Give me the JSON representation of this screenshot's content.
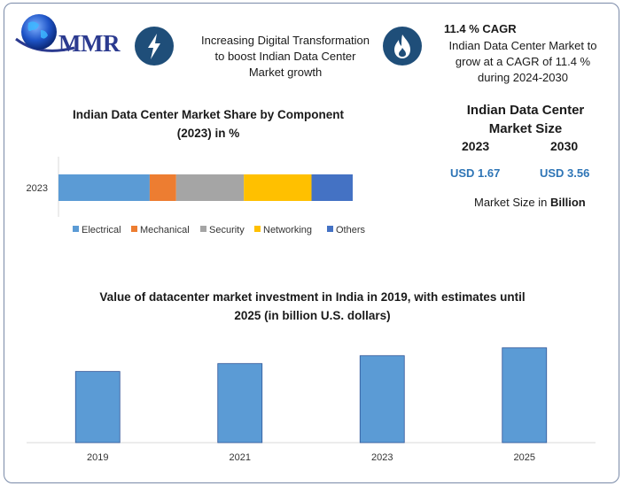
{
  "logo": {
    "text": "MMR",
    "icon": "globe-icon"
  },
  "header": {
    "transformation_icon": "lightning-bolt-icon",
    "transformation_text": [
      "Increasing Digital Transformation",
      "to boost Indian Data Center",
      "Market growth"
    ],
    "cagr_icon": "flame-icon",
    "cagr_title": "11.4 % CAGR",
    "cagr_text": [
      "Indian Data Center Market to",
      "grow at a CAGR of 11.4 %",
      "during 2024-2030"
    ]
  },
  "market_size": {
    "title": [
      "Indian Data Center",
      "Market Size"
    ],
    "year1": "2023",
    "year2": "2030",
    "value1": "USD 1.67",
    "value2": "USD 3.56",
    "note_prefix": "Market Size in ",
    "note_bold": "Billion"
  },
  "colors": {
    "Electrical": "#5b9bd5",
    "Mechanical": "#ed7d31",
    "Security": "#a5a5a5",
    "Networking": "#ffc000",
    "Others": "#4472c4",
    "investment_bar": "#5b9bd5",
    "accent": "#1f4e79",
    "value_text": "#2e75b6"
  },
  "chart_data": [
    {
      "type": "bar",
      "orientation": "horizontal",
      "stacked": true,
      "title": [
        "Indian Data Center Market Share by Component",
        "(2023) in %"
      ],
      "categories": [
        "2023"
      ],
      "series": [
        {
          "name": "Electrical",
          "values": [
            31
          ]
        },
        {
          "name": "Mechanical",
          "values": [
            9
          ]
        },
        {
          "name": "Security",
          "values": [
            23
          ]
        },
        {
          "name": "Networking",
          "values": [
            23
          ]
        },
        {
          "name": "Others",
          "values": [
            14
          ]
        }
      ],
      "xlim": [
        0,
        100
      ],
      "legend": "bottom",
      "grid": false
    },
    {
      "type": "bar",
      "title": [
        "Value of datacenter market investment in India in 2019, with estimates until",
        "2025 (in billion U.S. dollars)"
      ],
      "categories": [
        "2019",
        "2021",
        "2023",
        "2025"
      ],
      "values": [
        2.7,
        3.0,
        3.3,
        3.6
      ],
      "ylim": [
        0,
        4.3
      ],
      "legend": "none",
      "grid": false
    }
  ]
}
